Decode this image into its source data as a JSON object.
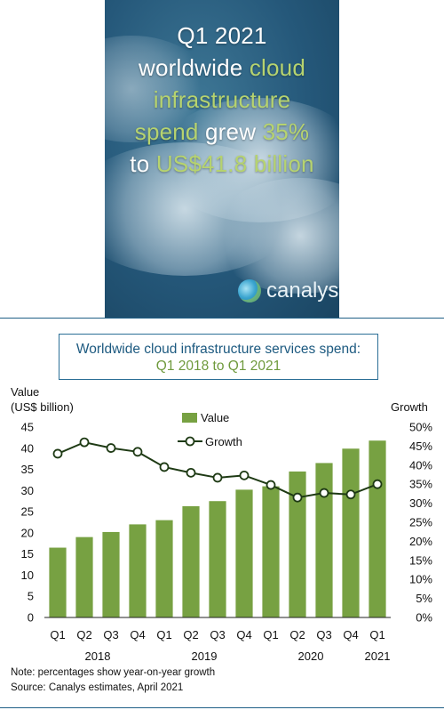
{
  "banner": {
    "line1": "Q1 2021",
    "line2a": "worldwide ",
    "line2b": "cloud",
    "line3": "infrastructure",
    "line4a": "spend",
    "line4b": " grew ",
    "line4c": "35%",
    "line5a": "to ",
    "line5b": "US$41.8 billion",
    "logo_text": "canalys"
  },
  "chart_title": {
    "line1": "Worldwide cloud infrastructure services spend:",
    "line2": "Q1 2018 to Q1 2021"
  },
  "left_axis_title": {
    "line1": "Value",
    "line2": "(US$ billion)"
  },
  "right_axis_title": "Growth",
  "footnotes": {
    "note": "Note: percentages show year-on-year growth",
    "source": "Source: Canalys estimates, April 2021"
  },
  "chart_data": {
    "type": "bar",
    "categories": [
      "Q1",
      "Q2",
      "Q3",
      "Q4",
      "Q1",
      "Q2",
      "Q3",
      "Q4",
      "Q1",
      "Q2",
      "Q3",
      "Q4",
      "Q1"
    ],
    "year_labels": [
      {
        "label": "2018",
        "start": 0,
        "end": 3
      },
      {
        "label": "2019",
        "start": 4,
        "end": 7
      },
      {
        "label": "2020",
        "start": 8,
        "end": 11
      },
      {
        "label": "2021",
        "start": 12,
        "end": 12
      }
    ],
    "series": [
      {
        "name": "Value",
        "type": "bar",
        "axis": "left",
        "color": "#77a142",
        "values": [
          16.5,
          19.0,
          20.2,
          22.0,
          23.0,
          26.3,
          27.5,
          30.2,
          31.0,
          34.5,
          36.5,
          39.9,
          41.8
        ]
      },
      {
        "name": "Growth",
        "type": "line",
        "axis": "right",
        "color": "#1e3a14",
        "values": [
          43,
          46,
          44.5,
          43.5,
          39.5,
          38,
          36.7,
          37.3,
          34.8,
          31.5,
          32.7,
          32.3,
          35
        ]
      }
    ],
    "y_left": {
      "ylim": [
        0,
        45
      ],
      "ticks": [
        "0",
        "5",
        "10",
        "15",
        "20",
        "25",
        "30",
        "35",
        "40",
        "45"
      ]
    },
    "y_right": {
      "ylim": [
        0,
        50
      ],
      "ticks": [
        "0%",
        "5%",
        "10%",
        "15%",
        "20%",
        "25%",
        "30%",
        "35%",
        "40%",
        "45%",
        "50%"
      ]
    },
    "grid": false,
    "legend_placement": "top-center"
  }
}
